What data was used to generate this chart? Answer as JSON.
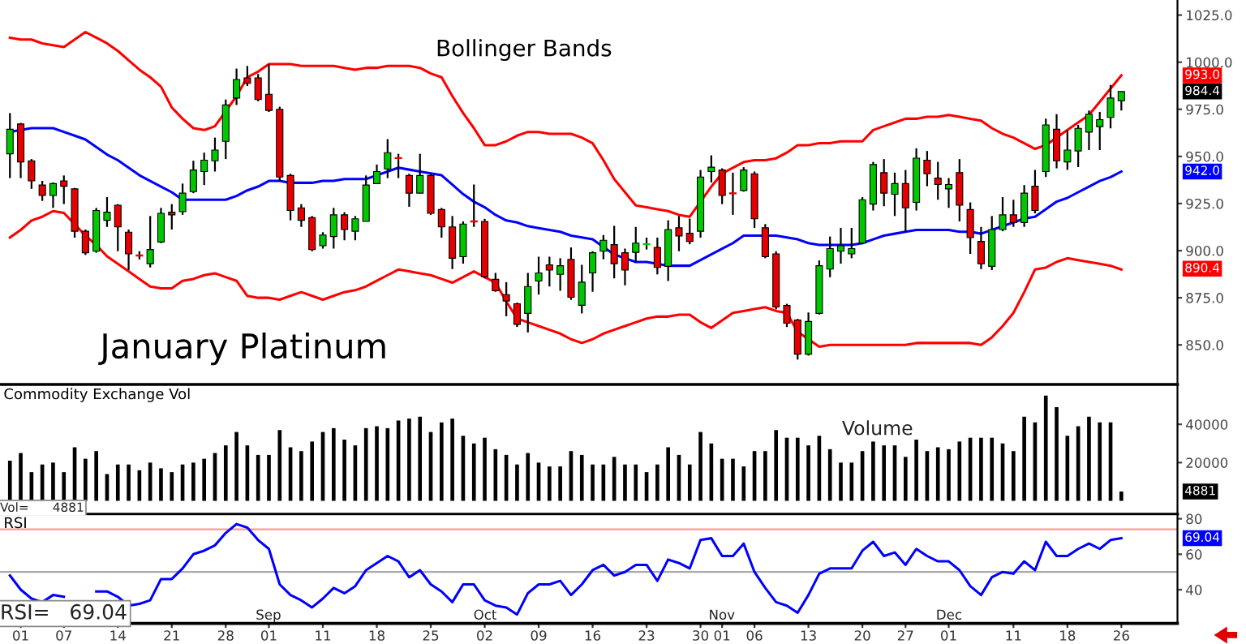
{
  "chart_data": [
    {
      "type": "candlestick",
      "title": "January Platinum",
      "subtitle": "Bollinger Bands",
      "tick_labels": "y",
      "categories": [
        null,
        "01",
        null,
        null,
        null,
        "07",
        null,
        null,
        null,
        null,
        "14",
        null,
        null,
        null,
        null,
        "21",
        null,
        null,
        null,
        null,
        "28",
        null,
        null,
        null,
        "01",
        null,
        null,
        null,
        null,
        "11",
        null,
        null,
        null,
        null,
        "18",
        null,
        null,
        null,
        null,
        "25",
        null,
        null,
        null,
        null,
        "02",
        null,
        null,
        null,
        null,
        "09",
        null,
        null,
        null,
        null,
        "16",
        null,
        null,
        null,
        null,
        "23",
        null,
        null,
        null,
        null,
        "30",
        null,
        "01",
        null,
        null,
        "06",
        null,
        null,
        null,
        null,
        "13",
        null,
        null,
        null,
        null,
        "20",
        null,
        null,
        null,
        "27",
        null,
        null,
        null,
        "01",
        null,
        null,
        null,
        null,
        null,
        "11",
        null,
        null,
        null,
        null,
        "18",
        null,
        null,
        null,
        null,
        "26"
      ],
      "ohlc": [
        [
          951.4,
          973,
          938.5,
          964.4
        ],
        [
          967.2,
          967.8,
          938.5,
          947.1
        ],
        [
          947.7,
          948.6,
          932.8,
          937
        ],
        [
          934.8,
          937,
          926.4,
          929.3
        ],
        [
          929.3,
          936.2,
          922.7,
          935.6
        ],
        [
          937,
          939.9,
          924.7,
          934.2
        ],
        [
          932.8,
          933.3,
          906.9,
          910.3
        ],
        [
          910.3,
          911.2,
          897.7,
          898.9
        ],
        [
          899.7,
          922.7,
          898.9,
          921.3
        ],
        [
          916.1,
          928.4,
          912.6,
          920.4
        ],
        [
          924.1,
          924.7,
          899.7,
          912.6
        ],
        [
          909.8,
          911.2,
          889.7,
          898.3
        ],
        [
          897.7,
          899.7,
          895.4,
          897.1
        ],
        [
          893.1,
          918.4,
          891.1,
          900.6
        ],
        [
          904.6,
          922.7,
          904,
          919.8
        ],
        [
          920.4,
          924.7,
          911.2,
          919
        ],
        [
          920.7,
          935.6,
          919,
          930.5
        ],
        [
          931.3,
          947.7,
          930.5,
          942.8
        ],
        [
          942,
          952,
          934.8,
          948
        ],
        [
          947.7,
          960,
          942,
          953.4
        ],
        [
          958,
          980.2,
          948.6,
          977.3
        ],
        [
          981,
          996.6,
          977.3,
          990.8
        ],
        [
          991.7,
          998,
          987.4,
          988.8
        ],
        [
          991.7,
          993.7,
          979.3,
          980.2
        ],
        [
          983,
          998.9,
          973.6,
          974.4
        ],
        [
          975,
          976.4,
          937,
          939.1
        ],
        [
          939.9,
          940.8,
          916.1,
          921.3
        ],
        [
          922.7,
          924.7,
          912.6,
          916.1
        ],
        [
          917.5,
          918.4,
          899.7,
          900.6
        ],
        [
          902.6,
          909.8,
          901.1,
          908.3
        ],
        [
          907.5,
          922.7,
          901.1,
          919
        ],
        [
          919,
          920.4,
          905.5,
          911.2
        ],
        [
          910.3,
          918.4,
          905.5,
          916.9
        ],
        [
          915.5,
          939.9,
          915.5,
          934.8
        ],
        [
          935.6,
          945.7,
          935.6,
          942
        ],
        [
          943.4,
          959.2,
          938.5,
          952
        ],
        [
          949.4,
          951.4,
          938.5,
          948.9
        ],
        [
          939.9,
          940.8,
          923.3,
          930.5
        ],
        [
          930.5,
          951.4,
          930.5,
          939.9
        ],
        [
          939.9,
          940.8,
          919,
          919.8
        ],
        [
          921.8,
          922.7,
          906.9,
          912.6
        ],
        [
          912.6,
          918.4,
          890.2,
          896
        ],
        [
          896.8,
          915.5,
          893.1,
          914.1
        ],
        [
          915.8,
          935.1,
          912.6,
          915.2
        ],
        [
          915.5,
          916.9,
          885.3,
          886.2
        ],
        [
          884.8,
          888.2,
          878.2,
          878.7
        ],
        [
          876.7,
          883.3,
          865.2,
          873.3
        ],
        [
          871.8,
          872.4,
          859.5,
          860.9
        ],
        [
          866.7,
          888.2,
          856.6,
          881
        ],
        [
          883.9,
          896.8,
          876.7,
          888.2
        ],
        [
          892.5,
          896.8,
          881,
          889.7
        ],
        [
          887.4,
          896,
          878.7,
          892
        ],
        [
          895.4,
          901.7,
          873.9,
          875.3
        ],
        [
          871,
          892.5,
          866.7,
          883.3
        ],
        [
          888.2,
          899.7,
          878.2,
          898.9
        ],
        [
          899.7,
          908.3,
          895.4,
          905.5
        ],
        [
          903.2,
          913.2,
          885.3,
          893.1
        ],
        [
          898.9,
          901.1,
          881.6,
          889.7
        ],
        [
          899.1,
          912.6,
          893.9,
          904
        ],
        [
          903.2,
          906.9,
          900.6,
          903.7
        ],
        [
          901.7,
          906.9,
          887.4,
          891.1
        ],
        [
          891.7,
          916.1,
          883.9,
          911.2
        ],
        [
          912.1,
          918.4,
          899.7,
          907.8
        ],
        [
          909.2,
          917,
          903.4,
          904.9
        ],
        [
          910.3,
          942.8,
          906.9,
          939.1
        ],
        [
          942,
          950.6,
          936.2,
          944.3
        ],
        [
          942.8,
          943.7,
          924.7,
          929.3
        ],
        [
          930.7,
          941.4,
          919,
          930.2
        ],
        [
          931.9,
          944.3,
          931.3,
          942.8
        ],
        [
          940.8,
          942,
          912.1,
          916.9
        ],
        [
          912.1,
          914.1,
          896,
          896.8
        ],
        [
          898.3,
          899.7,
          868.9,
          870.1
        ],
        [
          870.9,
          871.8,
          859.5,
          861.5
        ],
        [
          863.2,
          863.8,
          842.2,
          845.1
        ],
        [
          845.1,
          867.2,
          844.3,
          862.4
        ],
        [
          866.7,
          894.8,
          866.1,
          892
        ],
        [
          890.2,
          907.5,
          885.9,
          901.1
        ],
        [
          899.7,
          912.1,
          893.1,
          902.6
        ],
        [
          898.3,
          912.1,
          896,
          901.1
        ],
        [
          904,
          928.4,
          903.4,
          927
        ],
        [
          924.7,
          947.1,
          921.3,
          945.7
        ],
        [
          941.4,
          948.6,
          923.6,
          930.5
        ],
        [
          929.9,
          941.4,
          918.4,
          935.6
        ],
        [
          935.6,
          942.8,
          909.8,
          922.7
        ],
        [
          925.6,
          954.3,
          921.3,
          949.1
        ],
        [
          948,
          952.9,
          934.2,
          940.8
        ],
        [
          938.5,
          947.1,
          927,
          935.1
        ],
        [
          932.8,
          938.5,
          922.7,
          935.1
        ],
        [
          941.4,
          948.6,
          915.5,
          924.1
        ],
        [
          921.8,
          925.6,
          898.3,
          906.9
        ],
        [
          904.9,
          912.6,
          890.2,
          893.1
        ],
        [
          891.7,
          918.4,
          889.7,
          911.2
        ],
        [
          911.2,
          928.4,
          910.3,
          919
        ],
        [
          919,
          927,
          912.6,
          915
        ],
        [
          914.9,
          934.8,
          912.6,
          930.5
        ],
        [
          934.2,
          942.8,
          919.8,
          921.3
        ],
        [
          942,
          970.1,
          939.1,
          966.7
        ],
        [
          964.4,
          972.4,
          943.7,
          947.7
        ],
        [
          947.1,
          963.8,
          942.8,
          953.4
        ],
        [
          952.9,
          966.7,
          944.3,
          964.9
        ],
        [
          962.9,
          974.4,
          953.4,
          972.4
        ],
        [
          965.8,
          973.6,
          953.4,
          969.5
        ],
        [
          970.7,
          987.9,
          964.9,
          981
        ],
        [
          979.6,
          984.5,
          974.4,
          984.4
        ]
      ],
      "colors": [
        "#00c800",
        "#e80000",
        "#e80000",
        "#e80000",
        "#00c800",
        "#e80000",
        "#e80000",
        "#e80000",
        "#00c800",
        "#00c800",
        "#e80000",
        "#e80000",
        "#e80000",
        "#00c800",
        "#00c800",
        "#e80000",
        "#00c800",
        "#00c800",
        "#00c800",
        "#00c800",
        "#00c800",
        "#00c800",
        "#e80000",
        "#e80000",
        "#e80000",
        "#e80000",
        "#e80000",
        "#e80000",
        "#e80000",
        "#00c800",
        "#00c800",
        "#e80000",
        "#00c800",
        "#00c800",
        "#00c800",
        "#00c800",
        "#e80000",
        "#e80000",
        "#00c800",
        "#e80000",
        "#e80000",
        "#e80000",
        "#00c800",
        "#e80000",
        "#e80000",
        "#e80000",
        "#e80000",
        "#e80000",
        "#00c800",
        "#00c800",
        "#e80000",
        "#00c800",
        "#e80000",
        "#00c800",
        "#00c800",
        "#00c800",
        "#e80000",
        "#e80000",
        "#00c800",
        "#00c800",
        "#e80000",
        "#00c800",
        "#e80000",
        "#e80000",
        "#00c800",
        "#00c800",
        "#e80000",
        "#e80000",
        "#00c800",
        "#e80000",
        "#e80000",
        "#e80000",
        "#e80000",
        "#e80000",
        "#00c800",
        "#00c800",
        "#00c800",
        "#00c800",
        "#00c800",
        "#00c800",
        "#00c800",
        "#e80000",
        "#00c800",
        "#e80000",
        "#00c800",
        "#e80000",
        "#e80000",
        "#00c800",
        "#e80000",
        "#e80000",
        "#e80000",
        "#00c800",
        "#00c800",
        "#e80000",
        "#00c800",
        "#e80000",
        "#00c800",
        "#e80000",
        "#00c800",
        "#00c800",
        "#00c800",
        "#00c800",
        "#00c800",
        "#00c800"
      ],
      "series": [
        {
          "type": "line",
          "color": "#ff0000",
          "values": [
            1013,
            1012,
            1012,
            1010,
            1009,
            1008,
            1012,
            1016,
            1013,
            1010,
            1006,
            1001,
            996,
            992,
            987,
            976,
            970,
            965,
            964,
            966,
            974,
            982,
            992,
            995,
            999,
            999,
            999,
            998,
            998,
            998,
            998,
            997,
            996,
            997,
            997,
            998,
            998,
            998,
            997,
            994,
            992,
            982,
            973,
            965,
            956,
            956,
            958,
            961,
            963,
            963,
            962,
            962,
            962,
            960,
            957,
            948,
            938,
            931,
            924,
            923,
            922,
            921,
            919,
            918,
            926,
            934,
            941,
            944,
            947,
            948,
            948,
            949,
            952,
            956,
            956,
            957,
            957,
            958,
            958,
            958,
            964,
            966,
            968,
            970,
            970,
            971,
            971,
            972,
            971,
            970,
            969,
            965,
            962,
            960,
            957,
            954,
            956,
            960,
            964,
            968,
            972,
            979,
            986,
            993
          ]
        },
        {
          "type": "line",
          "color": "#0000ff",
          "values": [
            963,
            964,
            965,
            965,
            965,
            963,
            961,
            959,
            955,
            951,
            948,
            944,
            940,
            937,
            934,
            931,
            927,
            927,
            927,
            927,
            927,
            929,
            932,
            934,
            937,
            937,
            936,
            936,
            936,
            937,
            937,
            938,
            938,
            938,
            940,
            942,
            944,
            943,
            942,
            941,
            940,
            935,
            930,
            926,
            923,
            919,
            916,
            915,
            913,
            912,
            911,
            910,
            908,
            907,
            906,
            902,
            898,
            896,
            894,
            894,
            893,
            892,
            892,
            892,
            895,
            898,
            901,
            904,
            908,
            908,
            908,
            908,
            907,
            906,
            904,
            903,
            903,
            903,
            903,
            904,
            906,
            908,
            909,
            910,
            911,
            911,
            911,
            911,
            910,
            910,
            909,
            911,
            913,
            915,
            917,
            918,
            922,
            926,
            928,
            931,
            934,
            937,
            939,
            942
          ]
        },
        {
          "type": "line",
          "color": "#ff0000",
          "values": [
            907,
            911,
            916,
            918,
            921,
            920,
            914,
            908,
            903,
            897,
            893,
            889,
            885,
            881,
            880,
            880,
            884,
            885,
            887,
            888,
            886,
            884,
            876,
            875,
            875,
            874,
            876,
            878,
            876,
            874,
            876,
            878,
            879,
            881,
            884,
            887,
            890,
            889,
            888,
            887,
            885,
            883,
            886,
            889,
            886,
            883,
            873,
            864,
            862,
            860,
            858,
            856,
            853,
            851,
            853,
            856,
            858,
            860,
            862,
            864,
            865,
            865,
            866,
            866,
            862,
            859,
            863,
            867,
            868,
            869,
            870,
            868,
            867,
            857,
            853,
            849,
            850,
            850,
            850,
            850,
            850,
            850,
            850,
            850,
            851,
            851,
            851,
            851,
            851,
            851,
            850,
            854,
            860,
            867,
            878,
            890,
            891,
            894,
            896,
            895,
            894,
            893,
            892,
            890
          ]
        }
      ],
      "annotations": [
        "993.0",
        "984.4",
        "942.0",
        "890.4"
      ],
      "ylim": [
        829,
        1033
      ],
      "yticks": [
        {
          "value": 850,
          "label": "850.0"
        },
        {
          "value": 875,
          "label": "875.0"
        },
        {
          "value": 900,
          "label": "900.0"
        },
        {
          "value": 925,
          "label": "925.0"
        },
        {
          "value": 950,
          "label": "950.0"
        },
        {
          "value": 975,
          "label": "975.0"
        },
        {
          "value": 1000,
          "label": "1000.0"
        },
        {
          "value": 1025,
          "label": "1025.0"
        }
      ]
    },
    {
      "type": "bar",
      "title": "Commodity Exchange Vol",
      "tick_labels": "y",
      "color": "#000000",
      "categories": [
        null,
        "01",
        null,
        null,
        null,
        "07",
        null,
        null,
        null,
        null,
        "14",
        null,
        null,
        null,
        null,
        "21",
        null,
        null,
        null,
        null,
        "28",
        null,
        null,
        null,
        "01",
        null,
        null,
        null,
        null,
        "11",
        null,
        null,
        null,
        null,
        "18",
        null,
        null,
        null,
        null,
        "25",
        null,
        null,
        null,
        null,
        "02",
        null,
        null,
        null,
        null,
        "09",
        null,
        null,
        null,
        null,
        "16",
        null,
        null,
        null,
        null,
        "23",
        null,
        null,
        null,
        null,
        "30",
        null,
        "01",
        null,
        null,
        "06",
        null,
        null,
        null,
        null,
        "13",
        null,
        null,
        null,
        null,
        "20",
        null,
        null,
        null,
        "27",
        null,
        null,
        null,
        "01",
        null,
        null,
        null,
        null,
        null,
        "11",
        null,
        null,
        null,
        null,
        "18",
        null,
        null,
        null,
        null,
        "26"
      ],
      "values": [
        21000,
        25000,
        15000,
        19000,
        20000,
        15000,
        28000,
        22000,
        26000,
        14000,
        19000,
        19000,
        16000,
        20000,
        17000,
        15000,
        19000,
        20000,
        22000,
        25000,
        29000,
        36000,
        29000,
        24000,
        24000,
        37000,
        28000,
        26000,
        31000,
        36000,
        38000,
        32000,
        29000,
        38000,
        39000,
        38000,
        42000,
        43000,
        44000,
        36000,
        41000,
        43000,
        34000,
        30000,
        33000,
        27000,
        24000,
        19000,
        25000,
        20000,
        18000,
        18000,
        26000,
        24000,
        19000,
        19000,
        23000,
        19000,
        19000,
        15000,
        19000,
        28000,
        24000,
        19000,
        36000,
        30000,
        22000,
        22000,
        18000,
        26000,
        26000,
        37000,
        33000,
        33000,
        29000,
        34000,
        27000,
        20000,
        20000,
        26000,
        31000,
        29000,
        29000,
        23000,
        32000,
        26000,
        28000,
        27000,
        31000,
        33000,
        33000,
        33000,
        30000,
        26000,
        44000,
        41000,
        55000,
        49000,
        34000,
        39000,
        44000,
        41000,
        41000,
        4881
      ],
      "annotations": [
        "Volume",
        "Vol=      4881",
        "4881"
      ],
      "ylim": [
        -7000,
        60000
      ],
      "yticks": [
        20000,
        40000
      ]
    },
    {
      "type": "line",
      "title": "RSI",
      "categories": [
        null,
        "01",
        null,
        null,
        null,
        "07",
        null,
        null,
        null,
        null,
        "14",
        null,
        null,
        null,
        null,
        "21",
        null,
        null,
        null,
        null,
        "28",
        null,
        null,
        null,
        "01",
        null,
        null,
        null,
        null,
        "11",
        null,
        null,
        null,
        null,
        "18",
        null,
        null,
        null,
        null,
        "25",
        null,
        null,
        null,
        null,
        "02",
        null,
        null,
        null,
        null,
        "09",
        null,
        null,
        null,
        null,
        "16",
        null,
        null,
        null,
        null,
        "23",
        null,
        null,
        null,
        null,
        "30",
        null,
        "01",
        null,
        null,
        "06",
        null,
        null,
        null,
        null,
        "13",
        null,
        null,
        null,
        null,
        "20",
        null,
        null,
        null,
        "27",
        null,
        null,
        null,
        "01",
        null,
        null,
        null,
        null,
        null,
        "11",
        null,
        null,
        null,
        null,
        "18",
        null,
        null,
        null,
        null,
        "26"
      ],
      "series": [
        {
          "color": "#0000ff",
          "values": [
            48,
            40,
            35,
            33,
            37,
            36,
            null,
            null,
            39,
            39,
            36,
            31,
            32,
            34,
            46,
            46,
            52,
            60,
            62,
            65,
            72,
            77,
            75,
            68,
            63,
            43,
            37,
            34,
            30,
            35,
            41,
            38,
            42,
            51,
            55,
            59,
            56,
            47,
            51,
            43,
            39,
            33,
            43,
            43,
            34,
            31,
            30,
            26,
            38,
            43,
            43,
            45,
            37,
            43,
            51,
            54,
            48,
            50,
            54,
            54,
            45,
            57,
            55,
            52,
            68,
            69,
            59,
            59,
            66,
            50,
            41,
            33,
            31,
            27,
            37,
            49,
            52,
            52,
            52,
            62,
            67,
            59,
            61,
            54,
            63,
            59,
            56,
            56,
            51,
            42,
            37,
            47,
            50,
            49,
            56,
            51,
            67,
            59,
            59,
            63,
            66,
            63,
            68,
            69.04
          ]
        }
      ],
      "ref_lines": [
        {
          "axis": "y",
          "value": 74,
          "color": "#ff9999"
        },
        {
          "axis": "y",
          "value": 50,
          "color": "#aaaaaa"
        }
      ],
      "annotations": [
        "RSI=   69.04",
        "Sep",
        "Oct",
        "Nov",
        "Dec",
        "69.04"
      ],
      "ylim": [
        21,
        82
      ],
      "yticks": [
        40,
        60,
        80
      ]
    }
  ]
}
